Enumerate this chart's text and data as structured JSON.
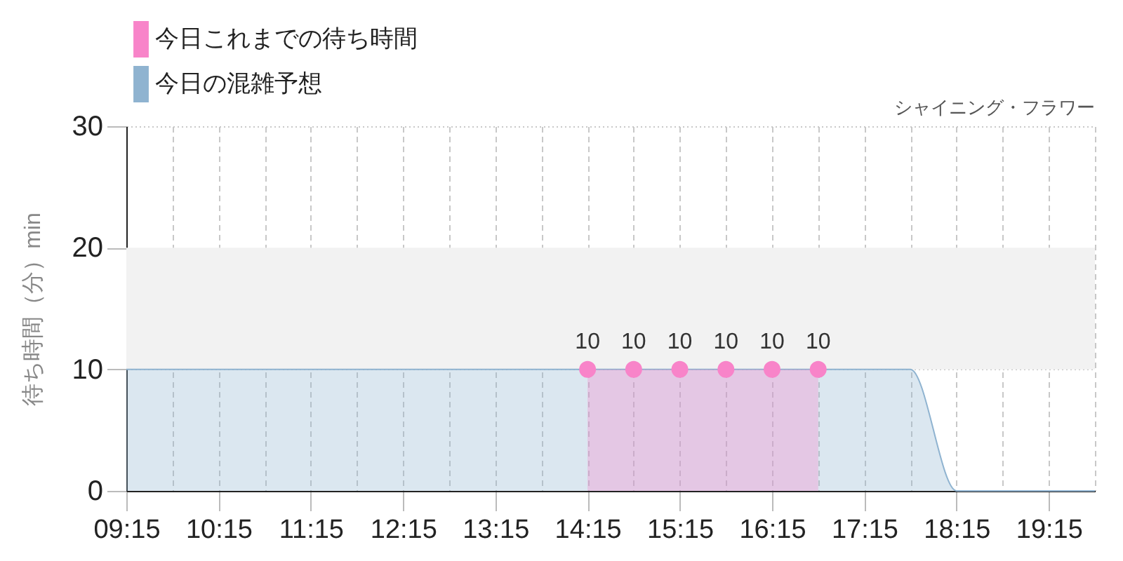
{
  "chart_data": {
    "type": "area",
    "title": "シャイニング・フラワー",
    "ylabel": "待ち時間（分）min",
    "xlim": [
      9.25,
      19.75
    ],
    "xticks": [
      {
        "value": 9.25,
        "label": "09:15"
      },
      {
        "value": 9.75,
        "label": null
      },
      {
        "value": 10.25,
        "label": "10:15"
      },
      {
        "value": 10.75,
        "label": null
      },
      {
        "value": 11.25,
        "label": "11:15"
      },
      {
        "value": 11.75,
        "label": null
      },
      {
        "value": 12.25,
        "label": "12:15"
      },
      {
        "value": 12.75,
        "label": null
      },
      {
        "value": 13.25,
        "label": "13:15"
      },
      {
        "value": 13.75,
        "label": null
      },
      {
        "value": 14.25,
        "label": "14:15"
      },
      {
        "value": 14.75,
        "label": null
      },
      {
        "value": 15.25,
        "label": "15:15"
      },
      {
        "value": 15.75,
        "label": null
      },
      {
        "value": 16.25,
        "label": "16:15"
      },
      {
        "value": 16.75,
        "label": null
      },
      {
        "value": 17.25,
        "label": "17:15"
      },
      {
        "value": 17.75,
        "label": null
      },
      {
        "value": 18.25,
        "label": "18:15"
      },
      {
        "value": 18.75,
        "label": null
      },
      {
        "value": 19.25,
        "label": "19:15"
      },
      {
        "value": 19.75,
        "label": null
      }
    ],
    "ylim": [
      0,
      30
    ],
    "yticks": [
      0,
      10,
      20,
      30
    ],
    "grid": true,
    "legend": "top left",
    "bands": [
      {
        "axis": "y",
        "from": 10,
        "to": 20,
        "color": "#f2f2f2"
      }
    ],
    "series": [
      {
        "name": "今日これまでの待ち時間",
        "color": "#f884c9",
        "x": [
          14.25,
          14.75,
          15.25,
          15.75,
          16.25,
          16.75
        ],
        "values": [
          10,
          10,
          10,
          10,
          10,
          10
        ],
        "marker": "circle",
        "data_labels": true
      },
      {
        "name": "今日の混雑予想",
        "color": "#8fb3d0",
        "x": [
          9.25,
          9.75,
          10.25,
          10.75,
          11.25,
          11.75,
          12.25,
          12.75,
          13.25,
          13.75,
          14.25,
          14.75,
          15.25,
          15.75,
          16.25,
          16.75,
          17.25,
          17.75,
          18.25,
          18.75,
          19.25,
          19.75
        ],
        "values": [
          10,
          10,
          10,
          10,
          10,
          10,
          10,
          10,
          10,
          10,
          10,
          10,
          10,
          10,
          10,
          10,
          10,
          10,
          0,
          0,
          0,
          0
        ]
      }
    ]
  }
}
